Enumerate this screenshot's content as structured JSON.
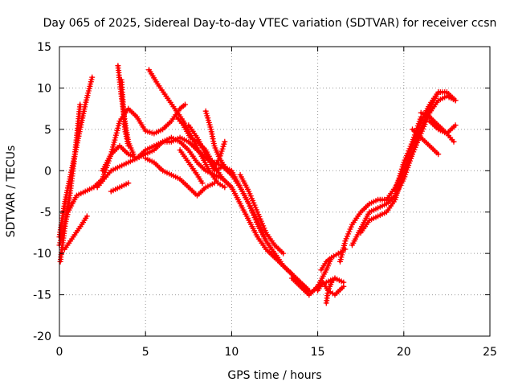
{
  "chart_data": {
    "type": "scatter",
    "title": "Day 065 of 2025, Sidereal Day-to-day VTEC variation (SDTVAR) for receiver ccsn",
    "xlabel": "GPS time / hours",
    "ylabel": "SDTVAR / TECUs",
    "xlim": [
      0,
      25
    ],
    "ylim": [
      -20,
      15
    ],
    "x_ticks": [
      0,
      5,
      10,
      15,
      20,
      25
    ],
    "y_ticks": [
      -20,
      -15,
      -10,
      -5,
      0,
      5,
      10,
      15
    ],
    "x_tick_labels": [
      "0",
      "5",
      "10",
      "15",
      "20",
      "25"
    ],
    "y_tick_labels": [
      "-20",
      "-15",
      "-10",
      "-5",
      "0",
      "5",
      "10",
      "15"
    ],
    "grid": true,
    "marker": "+",
    "color": "#ff0000",
    "series": [
      {
        "name": "s1",
        "x": [
          0.0,
          0.3,
          0.6,
          0.9,
          1.2,
          1.5,
          1.9
        ],
        "y": [
          -8.0,
          -4.0,
          -1.0,
          2.0,
          5.0,
          8.0,
          11.3
        ]
      },
      {
        "name": "s2",
        "x": [
          0.05,
          0.3,
          0.6,
          0.9,
          1.2
        ],
        "y": [
          -11.0,
          -7.0,
          -3.0,
          2.0,
          8.0
        ]
      },
      {
        "name": "s3",
        "x": [
          0.0,
          0.5,
          1.0,
          1.5,
          2.0,
          2.5,
          3.0,
          3.5,
          4.0,
          4.5,
          5.0,
          5.5,
          6.0,
          6.5,
          7.0,
          7.3
        ],
        "y": [
          -9.0,
          -5.0,
          -3.0,
          -2.5,
          -2.0,
          -1.0,
          2.0,
          6.0,
          7.5,
          6.5,
          4.8,
          4.5,
          5.0,
          6.0,
          7.5,
          8.0
        ]
      },
      {
        "name": "s4",
        "x": [
          0.3,
          0.8,
          1.3,
          1.6
        ],
        "y": [
          -9.5,
          -8.0,
          -6.5,
          -5.5
        ]
      },
      {
        "name": "s5",
        "x": [
          2.2,
          2.6,
          3.0,
          3.5,
          4.0,
          4.5,
          5.0,
          5.5,
          6.0,
          6.5,
          7.0,
          7.5,
          8.0,
          8.5,
          9.0,
          9.5,
          10.0,
          10.5,
          11.0,
          11.5,
          12.0,
          12.5,
          13.0,
          13.5,
          14.0,
          14.5,
          15.0,
          15.5,
          15.8
        ],
        "y": [
          -2.0,
          -1.0,
          0.0,
          0.5,
          1.0,
          1.5,
          2.0,
          2.5,
          3.5,
          4.0,
          3.5,
          2.5,
          1.0,
          0.0,
          -0.5,
          -1.0,
          -2.0,
          -4.0,
          -6.0,
          -8.0,
          -9.5,
          -10.5,
          -11.5,
          -12.5,
          -14.0,
          -15.0,
          -14.0,
          -12.0,
          -10.5
        ]
      },
      {
        "name": "s6",
        "x": [
          2.5,
          3.0,
          3.5,
          4.0,
          4.5,
          5.0,
          5.5,
          6.0,
          6.5,
          7.0,
          7.5,
          8.0,
          8.5,
          9.0,
          9.5,
          10.0,
          10.5,
          11.0,
          11.5,
          12.0,
          12.5,
          13.0,
          13.5,
          14.0,
          14.5
        ],
        "y": [
          0.0,
          2.0,
          3.0,
          2.0,
          1.5,
          2.5,
          3.0,
          3.5,
          3.5,
          4.0,
          3.5,
          2.5,
          1.5,
          1.0,
          0.5,
          -0.5,
          -2.0,
          -4.0,
          -6.0,
          -8.5,
          -10.0,
          -11.5,
          -12.5,
          -13.5,
          -14.5
        ]
      },
      {
        "name": "s7",
        "x": [
          3.0,
          3.5,
          4.0
        ],
        "y": [
          -2.5,
          -2.0,
          -1.5
        ]
      },
      {
        "name": "s8",
        "x": [
          3.4,
          3.6,
          3.8,
          4.0,
          4.3
        ],
        "y": [
          12.7,
          9.0,
          6.0,
          3.5,
          2.0
        ]
      },
      {
        "name": "s9",
        "x": [
          3.6,
          3.7,
          3.8,
          4.0
        ],
        "y": [
          11.0,
          8.0,
          5.0,
          3.0
        ]
      },
      {
        "name": "s10",
        "x": [
          5.0,
          5.5,
          6.0,
          6.5,
          7.0,
          7.5,
          8.0,
          8.5,
          9.0
        ],
        "y": [
          1.5,
          1.0,
          0.0,
          -0.5,
          -1.0,
          -2.0,
          -3.0,
          -2.0,
          -1.5
        ]
      },
      {
        "name": "s11",
        "x": [
          5.2,
          5.7,
          6.2,
          6.7,
          7.2,
          7.7,
          8.2,
          8.7,
          9.2,
          9.6
        ],
        "y": [
          12.2,
          10.5,
          9.0,
          7.5,
          6.0,
          4.0,
          2.0,
          0.0,
          -1.5,
          -2.0
        ]
      },
      {
        "name": "s12",
        "x": [
          6.8,
          7.2,
          7.6,
          8.0,
          8.5,
          9.0,
          9.5,
          10.0
        ],
        "y": [
          6.5,
          5.5,
          4.0,
          3.5,
          2.5,
          0.5,
          -1.0,
          -2.0
        ]
      },
      {
        "name": "s13",
        "x": [
          7.0,
          7.5,
          8.0,
          8.3
        ],
        "y": [
          2.5,
          1.0,
          -0.5,
          -1.5
        ]
      },
      {
        "name": "s14",
        "x": [
          7.5,
          8.0,
          8.5,
          9.0,
          9.5,
          10.0,
          10.5,
          11.0,
          11.5,
          12.0,
          12.5,
          13.0,
          13.5,
          14.0,
          14.5
        ],
        "y": [
          5.5,
          4.0,
          2.0,
          0.0,
          0.5,
          0.0,
          -2.0,
          -4.0,
          -6.5,
          -8.5,
          -10.0,
          -11.5,
          -12.5,
          -13.5,
          -14.5
        ]
      },
      {
        "name": "s15",
        "x": [
          8.5,
          8.8,
          9.0,
          9.3,
          9.6,
          10.0
        ],
        "y": [
          7.2,
          5.0,
          3.0,
          1.5,
          0.5,
          -0.5
        ]
      },
      {
        "name": "s16",
        "x": [
          9.0,
          9.3,
          9.6
        ],
        "y": [
          0.5,
          1.5,
          3.5
        ]
      },
      {
        "name": "s17",
        "x": [
          10.5,
          11.0,
          11.5,
          12.0,
          12.5,
          13.0
        ],
        "y": [
          -0.5,
          -2.5,
          -5.0,
          -7.5,
          -9.0,
          -10.0
        ]
      },
      {
        "name": "s18",
        "x": [
          13.5,
          14.0,
          14.5,
          15.0,
          15.5,
          16.0,
          16.5
        ],
        "y": [
          -13.0,
          -14.0,
          -15.0,
          -14.0,
          -13.5,
          -13.0,
          -13.5
        ]
      },
      {
        "name": "s19",
        "x": [
          15.0,
          15.3,
          15.6,
          16.0,
          16.5
        ],
        "y": [
          -14.5,
          -13.5,
          -14.5,
          -15.0,
          -14.0
        ]
      },
      {
        "name": "s20",
        "x": [
          15.2,
          15.5,
          15.8,
          16.2,
          16.6
        ],
        "y": [
          -12.0,
          -11.0,
          -10.5,
          -10.0,
          -9.5
        ]
      },
      {
        "name": "s21",
        "x": [
          15.5,
          15.6,
          15.8,
          16.0
        ],
        "y": [
          -16.0,
          -14.5,
          -13.5,
          -13.0
        ]
      },
      {
        "name": "s22",
        "x": [
          16.3,
          16.6,
          17.0,
          17.5,
          18.0,
          18.5,
          19.0,
          19.5,
          20.0,
          20.5,
          21.0,
          21.5,
          22.0,
          22.5,
          23.0
        ],
        "y": [
          -11.0,
          -8.5,
          -6.5,
          -5.0,
          -4.0,
          -3.5,
          -3.5,
          -2.0,
          0.0,
          2.0,
          4.5,
          7.0,
          8.5,
          9.0,
          8.5
        ]
      },
      {
        "name": "s23",
        "x": [
          17.0,
          17.5,
          18.0,
          18.5,
          19.0,
          19.5,
          20.0,
          20.5,
          21.0,
          21.5,
          22.0,
          22.5,
          23.0
        ],
        "y": [
          -9.0,
          -7.0,
          -5.0,
          -4.5,
          -4.0,
          -3.0,
          -1.0,
          2.0,
          5.0,
          7.5,
          9.5,
          9.5,
          8.5
        ]
      },
      {
        "name": "s24",
        "x": [
          17.5,
          18.0,
          18.5,
          19.0,
          19.5,
          20.0,
          20.5,
          21.0,
          21.5,
          22.0
        ],
        "y": [
          -7.5,
          -6.0,
          -5.5,
          -5.0,
          -3.5,
          0.0,
          3.0,
          6.0,
          8.0,
          9.5
        ]
      },
      {
        "name": "s25",
        "x": [
          19.5,
          20.0,
          20.5,
          21.0
        ],
        "y": [
          -2.5,
          1.0,
          3.5,
          6.5
        ]
      },
      {
        "name": "s26",
        "x": [
          21.0,
          21.5,
          22.0,
          22.5,
          22.9
        ],
        "y": [
          7.0,
          6.5,
          5.5,
          4.5,
          3.5
        ]
      },
      {
        "name": "s27",
        "x": [
          21.5,
          22.0,
          22.5,
          23.0
        ],
        "y": [
          6.0,
          5.0,
          4.5,
          5.5
        ]
      },
      {
        "name": "s28",
        "x": [
          20.5,
          21.0,
          21.5,
          22.0
        ],
        "y": [
          5.0,
          4.0,
          3.0,
          2.0
        ]
      }
    ]
  }
}
